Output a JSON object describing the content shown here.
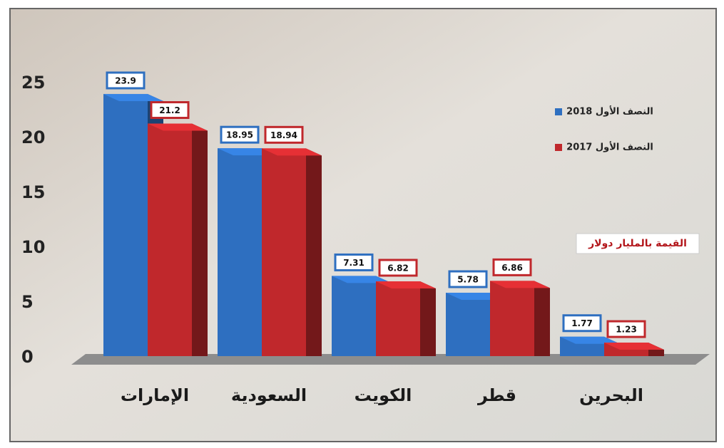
{
  "chart_data": {
    "type": "bar",
    "categories": [
      "الإمارات",
      "السعودية",
      "الكويت",
      "قطر",
      "البحرين"
    ],
    "series": [
      {
        "name": "النصف الأول 2018",
        "color": "#2e6fc0",
        "values": [
          23.9,
          18.95,
          7.31,
          5.78,
          1.77
        ]
      },
      {
        "name": "النصف الأول 2017",
        "color": "#c0282c",
        "values": [
          21.2,
          18.94,
          6.82,
          6.86,
          1.23
        ]
      }
    ],
    "annotation": "القيمة بالمليار دولار",
    "ylim": [
      0,
      25
    ],
    "yticks": [
      0,
      5,
      10,
      15,
      20,
      25
    ],
    "legend": "right"
  }
}
